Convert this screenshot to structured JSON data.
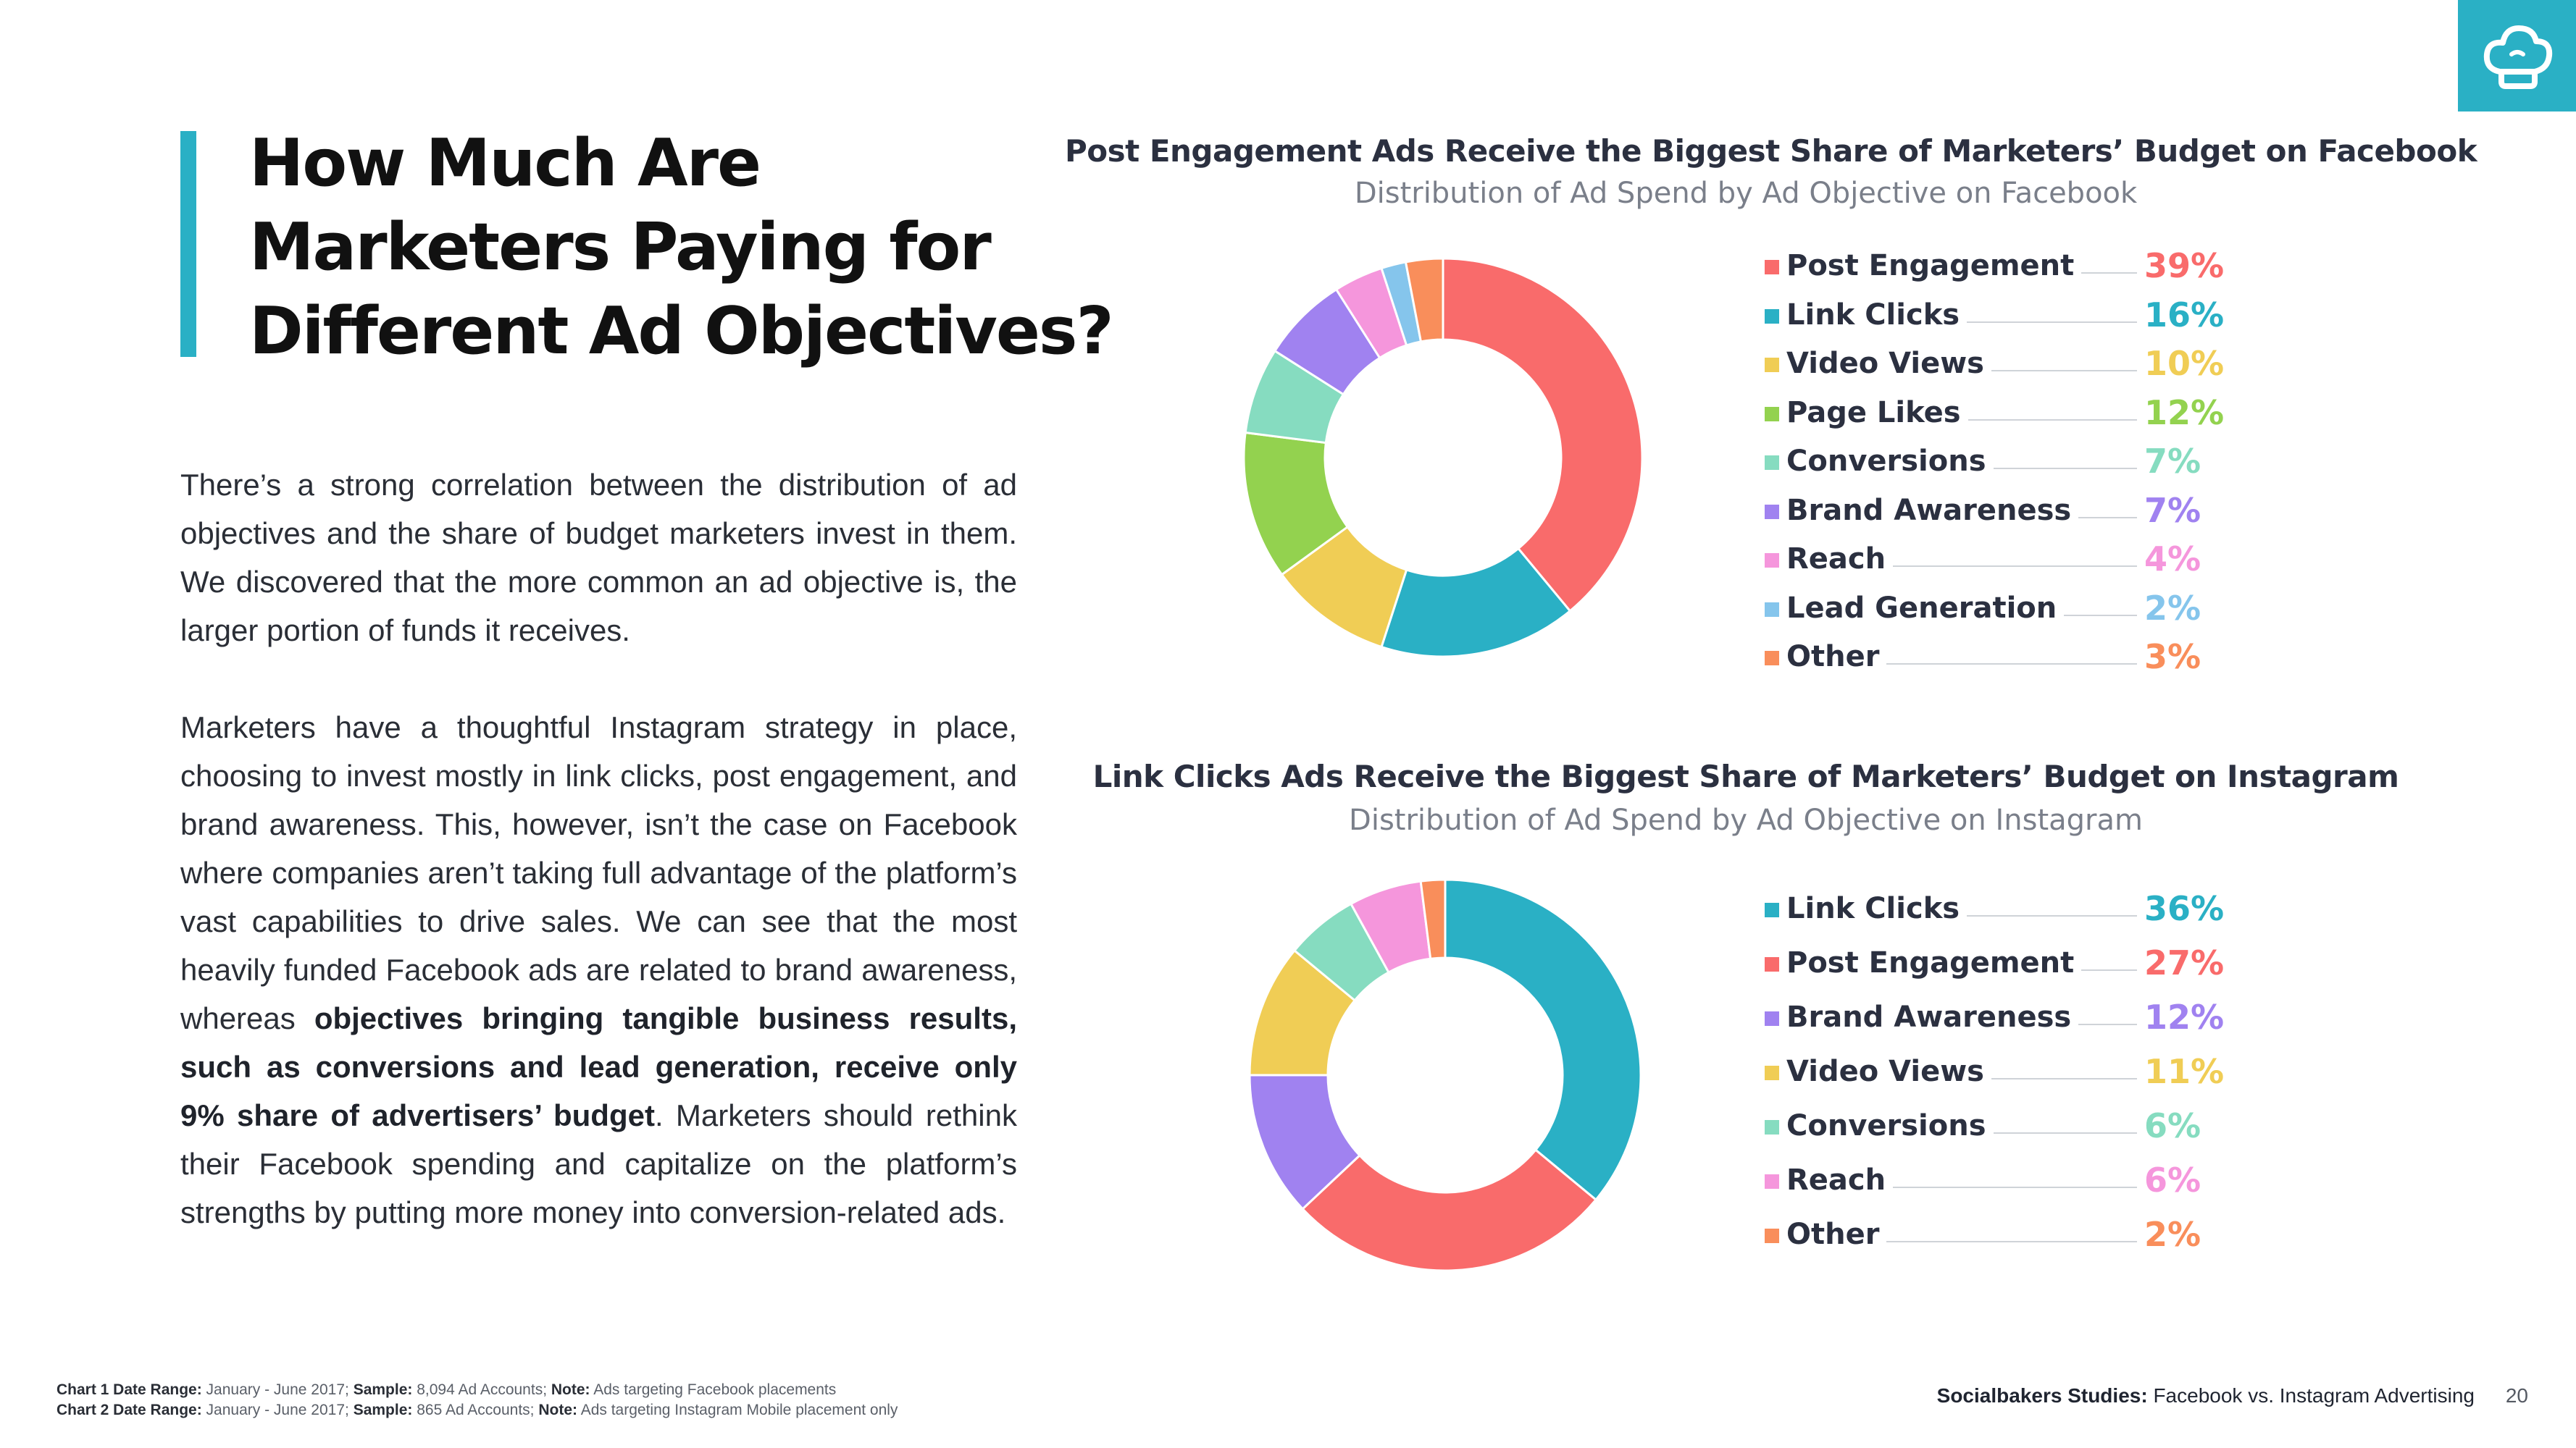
{
  "page": {
    "title_lines": [
      "How Much Are",
      "Marketers Paying for",
      "Different Ad Objectives?"
    ],
    "accent_color": "#2ab0c5",
    "logo_icon": "chef-hat-icon",
    "paragraph1": "There’s a strong correlation between the distribution of ad objectives and the share of budget marketers invest in them. We discovered that the more common an ad objective is, the larger portion of funds it receives.",
    "paragraph2_a": "Marketers have a thoughtful Instagram strategy in place, choosing to invest mostly in link clicks, post engagement, and brand awareness. This, however, isn’t the case on Facebook where companies aren’t taking full advantage of the platform’s vast capabilities to drive sales. We can see that the most heavily funded Facebook ads are related to brand awareness, whereas ",
    "paragraph2_bold": "objectives bringing tangible business results, such as conversions and lead generation, receive only 9% share of advertisers’ budget",
    "paragraph2_b": ". Marketers should rethink their Facebook spending and capitalize on the platform’s strengths by putting more money into conversion-related ads."
  },
  "footer": {
    "note1_label1": "Chart 1 Date Range:",
    "note1_range": " January - June 2017; ",
    "note1_label2": "Sample:",
    "note1_sample": " 8,094 Ad Accounts; ",
    "note1_label3": "Note:",
    "note1_note": " Ads targeting Facebook placements",
    "note2_label1": "Chart 2 Date Range:",
    "note2_range": " January - June 2017; ",
    "note2_label2": "Sample:",
    "note2_sample": " 865 Ad Accounts; ",
    "note2_label3": "Note:",
    "note2_note": " Ads targeting Instagram Mobile placement only",
    "brand_bold": "Socialbakers Studies:",
    "brand_rest": " Facebook vs. Instagram Advertising",
    "page_number": "20"
  },
  "chart_data": [
    {
      "type": "pie",
      "title": "Post Engagement Ads Receive the Biggest Share of Marketers’ Budget on Facebook",
      "subtitle": "Distribution of Ad Spend by Ad Objective on Facebook",
      "legend_position": "right",
      "categories": [
        "Post Engagement",
        "Link Clicks",
        "Video Views",
        "Page Likes",
        "Conversions",
        "Brand Awareness",
        "Reach",
        "Lead Generation",
        "Other"
      ],
      "values": [
        39,
        16,
        10,
        12,
        7,
        7,
        4,
        2,
        3
      ],
      "labels": [
        "39%",
        "16%",
        "10%",
        "12%",
        "7%",
        "7%",
        "4%",
        "2%",
        "3%"
      ],
      "colors": [
        "#f96b6b",
        "#2ab0c5",
        "#f0cd55",
        "#93d24f",
        "#86dcc0",
        "#a082f0",
        "#f596dc",
        "#85c5ec",
        "#f98e5b"
      ]
    },
    {
      "type": "pie",
      "title": "Link Clicks Ads Receive the Biggest Share of Marketers’ Budget on Instagram",
      "subtitle": "Distribution of Ad Spend by Ad Objective on Instagram",
      "legend_position": "right",
      "categories": [
        "Link Clicks",
        "Post Engagement",
        "Brand Awareness",
        "Video Views",
        "Conversions",
        "Reach",
        "Other"
      ],
      "values": [
        36,
        27,
        12,
        11,
        6,
        6,
        2
      ],
      "labels": [
        "36%",
        "27%",
        "12%",
        "11%",
        "6%",
        "6%",
        "2%"
      ],
      "colors": [
        "#2ab0c5",
        "#f96b6b",
        "#a082f0",
        "#f0cd55",
        "#86dcc0",
        "#f596dc",
        "#f98e5b"
      ]
    }
  ]
}
